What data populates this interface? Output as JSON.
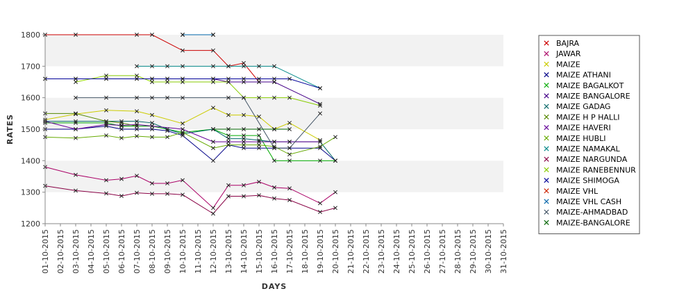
{
  "chart_data": {
    "type": "line",
    "title": "",
    "xlabel": "DAYS",
    "ylabel": "RATES",
    "ylim": [
      1200,
      1800
    ],
    "yticks": [
      1200,
      1300,
      1400,
      1500,
      1600,
      1700,
      1800
    ],
    "grid": "horizontal alternating bands",
    "legend_position": "right",
    "categories": [
      "01-10-2015",
      "02-10-2015",
      "03-10-2015",
      "04-10-2015",
      "05-10-2015",
      "06-10-2015",
      "07-10-2015",
      "08-10-2015",
      "09-10-2015",
      "10-10-2015",
      "11-10-2015",
      "12-10-2015",
      "13-10-2015",
      "14-10-2015",
      "15-10-2015",
      "16-10-2015",
      "17-10-2015",
      "18-10-2015",
      "19-10-2015",
      "20-10-2015",
      "21-10-2015",
      "22-10-2015",
      "23-10-2015",
      "24-10-2015",
      "25-10-2015",
      "26-10-2015",
      "27-10-2015",
      "28-10-2015",
      "29-10-2015",
      "30-10-2015",
      "31-10-2015"
    ],
    "series": [
      {
        "name": "BAJRA",
        "color": "#cc0000",
        "points": [
          [
            1,
            1800
          ],
          [
            3,
            1800
          ],
          [
            7,
            1800
          ],
          [
            8,
            1800
          ],
          [
            10,
            1750
          ],
          [
            12,
            1750
          ],
          [
            13,
            1700
          ],
          [
            14,
            1710
          ],
          [
            15,
            1650
          ],
          [
            16,
            1650
          ]
        ]
      },
      {
        "name": "JAWAR",
        "color": "#aa0066",
        "points": [
          [
            1,
            1380
          ],
          [
            3,
            1355
          ],
          [
            5,
            1338
          ],
          [
            6,
            1342
          ],
          [
            7,
            1352
          ],
          [
            8,
            1328
          ],
          [
            9,
            1328
          ],
          [
            10,
            1338
          ],
          [
            12,
            1250
          ],
          [
            13,
            1322
          ],
          [
            14,
            1322
          ],
          [
            15,
            1333
          ],
          [
            16,
            1315
          ],
          [
            17,
            1312
          ],
          [
            19,
            1265
          ],
          [
            20,
            1300
          ]
        ]
      },
      {
        "name": "MAIZE",
        "color": "#cccc00",
        "points": [
          [
            1,
            1530
          ],
          [
            3,
            1548
          ],
          [
            5,
            1560
          ],
          [
            7,
            1557
          ],
          [
            8,
            1545
          ],
          [
            10,
            1518
          ],
          [
            12,
            1568
          ],
          [
            13,
            1545
          ],
          [
            14,
            1545
          ],
          [
            15,
            1540
          ],
          [
            16,
            1500
          ],
          [
            17,
            1520
          ],
          [
            19,
            1465
          ]
        ]
      },
      {
        "name": "MAIZE ATHANI",
        "color": "#000088",
        "points": [
          [
            1,
            1500
          ],
          [
            3,
            1500
          ],
          [
            5,
            1510
          ],
          [
            6,
            1500
          ],
          [
            7,
            1500
          ],
          [
            8,
            1500
          ],
          [
            9,
            1495
          ],
          [
            10,
            1480
          ],
          [
            12,
            1400
          ],
          [
            13,
            1450
          ],
          [
            14,
            1440
          ],
          [
            15,
            1440
          ],
          [
            16,
            1440
          ],
          [
            17,
            1440
          ],
          [
            19,
            1440
          ],
          [
            20,
            1400
          ]
        ]
      },
      {
        "name": "MAIZE BAGALKOT",
        "color": "#00aa00",
        "points": [
          [
            1,
            1520
          ],
          [
            3,
            1520
          ],
          [
            5,
            1520
          ],
          [
            6,
            1510
          ],
          [
            7,
            1510
          ],
          [
            8,
            1510
          ],
          [
            10,
            1490
          ],
          [
            12,
            1500
          ],
          [
            13,
            1480
          ],
          [
            14,
            1480
          ],
          [
            15,
            1480
          ],
          [
            16,
            1400
          ],
          [
            17,
            1400
          ],
          [
            19,
            1400
          ],
          [
            20,
            1400
          ]
        ]
      },
      {
        "name": "MAIZE BANGALORE",
        "color": "#440088",
        "points": [
          [
            1,
            1660
          ],
          [
            3,
            1660
          ],
          [
            5,
            1660
          ],
          [
            7,
            1660
          ],
          [
            8,
            1660
          ],
          [
            9,
            1660
          ],
          [
            10,
            1660
          ],
          [
            12,
            1660
          ],
          [
            13,
            1650
          ],
          [
            14,
            1650
          ],
          [
            15,
            1650
          ],
          [
            16,
            1650
          ],
          [
            19,
            1580
          ]
        ]
      },
      {
        "name": "MAIZE GADAG",
        "color": "#006666",
        "points": [
          [
            1,
            1525
          ],
          [
            3,
            1525
          ],
          [
            5,
            1525
          ],
          [
            6,
            1525
          ],
          [
            7,
            1525
          ],
          [
            8,
            1520
          ],
          [
            9,
            1500
          ],
          [
            10,
            1485
          ],
          [
            12,
            1500
          ],
          [
            13,
            1470
          ],
          [
            14,
            1470
          ],
          [
            15,
            1465
          ],
          [
            16,
            1460
          ],
          [
            17,
            1460
          ],
          [
            19,
            1460
          ],
          [
            20,
            1400
          ]
        ]
      },
      {
        "name": "MAIZE H P HALLI",
        "color": "#558800",
        "points": [
          [
            1,
            1550
          ],
          [
            3,
            1550
          ],
          [
            5,
            1525
          ],
          [
            6,
            1520
          ],
          [
            7,
            1510
          ]
        ]
      },
      {
        "name": "MAIZE HAVERI",
        "color": "#660099",
        "points": [
          [
            1,
            1525
          ],
          [
            3,
            1500
          ],
          [
            5,
            1515
          ],
          [
            6,
            1512
          ],
          [
            7,
            1515
          ],
          [
            8,
            1510
          ],
          [
            10,
            1500
          ],
          [
            12,
            1460
          ],
          [
            13,
            1460
          ],
          [
            14,
            1460
          ],
          [
            15,
            1460
          ],
          [
            16,
            1460
          ],
          [
            17,
            1460
          ],
          [
            19,
            1460
          ]
        ]
      },
      {
        "name": "MAIZE HUBLI",
        "color": "#66aa00",
        "points": [
          [
            1,
            1475
          ],
          [
            3,
            1472
          ],
          [
            5,
            1480
          ],
          [
            6,
            1472
          ],
          [
            7,
            1478
          ],
          [
            8,
            1475
          ],
          [
            9,
            1475
          ],
          [
            10,
            1490
          ],
          [
            12,
            1440
          ],
          [
            13,
            1450
          ],
          [
            14,
            1450
          ],
          [
            15,
            1450
          ],
          [
            16,
            1445
          ],
          [
            17,
            1420
          ],
          [
            19,
            1445
          ],
          [
            20,
            1475
          ]
        ]
      },
      {
        "name": "MAIZE NAMAKAL",
        "color": "#008888",
        "points": [
          [
            7,
            1700
          ],
          [
            8,
            1700
          ],
          [
            9,
            1700
          ],
          [
            10,
            1700
          ],
          [
            12,
            1700
          ],
          [
            13,
            1700
          ],
          [
            14,
            1700
          ],
          [
            15,
            1700
          ],
          [
            16,
            1700
          ],
          [
            19,
            1630
          ]
        ]
      },
      {
        "name": "MAIZE NARGUNDA",
        "color": "#880044",
        "points": [
          [
            1,
            1320
          ],
          [
            3,
            1305
          ],
          [
            5,
            1296
          ],
          [
            6,
            1288
          ],
          [
            7,
            1298
          ],
          [
            8,
            1295
          ],
          [
            9,
            1295
          ],
          [
            10,
            1292
          ],
          [
            12,
            1232
          ],
          [
            13,
            1287
          ],
          [
            14,
            1287
          ],
          [
            15,
            1290
          ],
          [
            16,
            1280
          ],
          [
            17,
            1275
          ],
          [
            19,
            1237
          ],
          [
            20,
            1250
          ]
        ]
      },
      {
        "name": "MAIZE RANEBENNUR",
        "color": "#88cc00",
        "points": [
          [
            3,
            1650
          ],
          [
            5,
            1670
          ],
          [
            7,
            1670
          ],
          [
            8,
            1650
          ],
          [
            9,
            1650
          ],
          [
            10,
            1650
          ],
          [
            12,
            1650
          ],
          [
            13,
            1650
          ],
          [
            14,
            1600
          ],
          [
            15,
            1600
          ],
          [
            16,
            1600
          ],
          [
            17,
            1600
          ],
          [
            19,
            1575
          ]
        ]
      },
      {
        "name": "MAIZE SHIMOGA",
        "color": "#000099",
        "points": [
          [
            1,
            1660
          ],
          [
            3,
            1660
          ],
          [
            5,
            1660
          ],
          [
            7,
            1660
          ],
          [
            8,
            1660
          ],
          [
            9,
            1660
          ],
          [
            10,
            1660
          ],
          [
            12,
            1660
          ],
          [
            13,
            1660
          ],
          [
            14,
            1660
          ],
          [
            15,
            1660
          ],
          [
            16,
            1660
          ],
          [
            17,
            1660
          ],
          [
            19,
            1630
          ]
        ]
      },
      {
        "name": "MAIZE VHL",
        "color": "#cc2200",
        "points": [
          [
            10,
            1800
          ],
          [
            12,
            1800
          ]
        ]
      },
      {
        "name": "MAIZE VHL CASH",
        "color": "#0066aa",
        "points": [
          [
            10,
            1800
          ],
          [
            12,
            1800
          ]
        ]
      },
      {
        "name": "MAIZE-AHMADBAD",
        "color": "#445566",
        "points": [
          [
            3,
            1600
          ],
          [
            5,
            1600
          ],
          [
            7,
            1600
          ],
          [
            8,
            1600
          ],
          [
            9,
            1600
          ],
          [
            10,
            1600
          ],
          [
            13,
            1600
          ],
          [
            14,
            1600
          ],
          [
            16,
            1440
          ],
          [
            17,
            1440
          ],
          [
            19,
            1550
          ]
        ]
      },
      {
        "name": "MAIZE-BANGALORE",
        "color": "#006600",
        "points": [
          [
            12,
            1500
          ],
          [
            13,
            1500
          ],
          [
            14,
            1500
          ],
          [
            15,
            1500
          ],
          [
            16,
            1500
          ],
          [
            17,
            1500
          ]
        ]
      }
    ]
  }
}
